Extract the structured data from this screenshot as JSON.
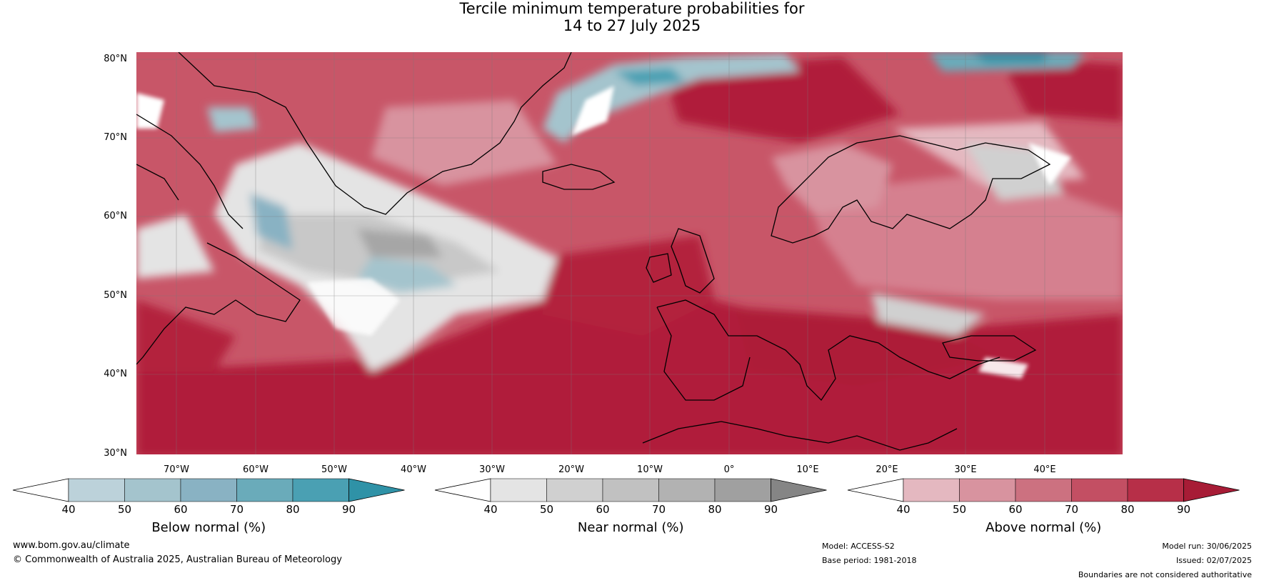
{
  "title": {
    "line1": "Tercile minimum temperature probabilities for",
    "line2": "14 to 27 July 2025"
  },
  "map": {
    "lat_labels": [
      "80°N",
      "70°N",
      "60°N",
      "50°N",
      "40°N",
      "30°N"
    ],
    "lon_labels": [
      "70°W",
      "60°W",
      "50°W",
      "40°W",
      "30°W",
      "20°W",
      "10°W",
      "0°",
      "10°E",
      "20°E",
      "30°E",
      "40°E"
    ],
    "extent": {
      "lon_min": -75,
      "lon_max": 50,
      "lat_min": 30,
      "lat_max": 81
    }
  },
  "legends": [
    {
      "title": "Below normal (%)",
      "ticks": [
        "40",
        "50",
        "60",
        "70",
        "80",
        "90"
      ],
      "colors": [
        "#ffffff",
        "#bcd2da",
        "#a4c4cd",
        "#89b2c3",
        "#6aabba",
        "#4aa0b3",
        "#2f92a7"
      ]
    },
    {
      "title": "Near normal (%)",
      "ticks": [
        "40",
        "50",
        "60",
        "70",
        "80",
        "90"
      ],
      "colors": [
        "#ffffff",
        "#e4e4e4",
        "#d0d0d0",
        "#c1c1c1",
        "#b2b2b2",
        "#a0a0a0",
        "#858585"
      ]
    },
    {
      "title": "Above normal (%)",
      "ticks": [
        "40",
        "50",
        "60",
        "70",
        "80",
        "90"
      ],
      "colors": [
        "#ffffff",
        "#e4b8c0",
        "#d8939f",
        "#cc7180",
        "#c34f63",
        "#b72f48",
        "#a71c36"
      ]
    }
  ],
  "footer": {
    "website": "www.bom.gov.au/climate",
    "copyright": "© Commonwealth of Australia 2025, Australian Bureau of Meteorology",
    "model": "Model: ACCESS-S2",
    "base_period": "Base period: 1981-2018",
    "model_run": "Model run: 30/06/2025",
    "issued": "Issued: 02/07/2025",
    "disclaimer": "Boundaries are not considered authoritative"
  }
}
